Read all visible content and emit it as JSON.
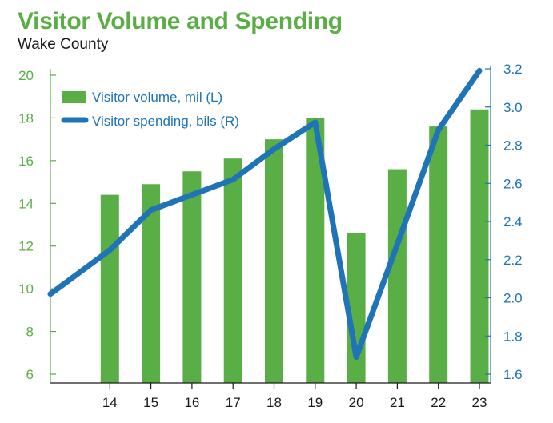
{
  "header": {
    "title": "Visitor Volume and Spending",
    "subtitle": "Wake County"
  },
  "colors": {
    "bars": "#5aae46",
    "line": "#1f73b7",
    "left_axis": "#5aae46",
    "right_axis": "#1f73b7",
    "x_axis": "#1a1a1a"
  },
  "chart_data": {
    "type": "bar+line",
    "title": "Visitor Volume and Spending",
    "subtitle": "Wake County",
    "categories": [
      "14",
      "15",
      "16",
      "17",
      "18",
      "19",
      "20",
      "21",
      "22",
      "23"
    ],
    "series": [
      {
        "name": "Visitor volume, mil (L)",
        "type": "bar",
        "axis": "left",
        "values": [
          14.4,
          14.9,
          15.5,
          16.1,
          17.0,
          18.0,
          12.6,
          15.6,
          17.6,
          18.4
        ]
      },
      {
        "name": "Visitor spending, bils (R)",
        "type": "line",
        "axis": "right",
        "start_value": 2.02,
        "values": [
          2.25,
          2.46,
          2.54,
          2.62,
          2.78,
          2.92,
          1.69,
          2.28,
          2.88,
          3.19
        ]
      }
    ],
    "left_axis": {
      "ylim": [
        5.5,
        21
      ],
      "ticks": [
        6,
        8,
        10,
        12,
        14,
        16,
        18,
        20
      ],
      "tick_labels": [
        "6",
        "8",
        "10",
        "12",
        "14",
        "16",
        "18",
        "20"
      ]
    },
    "right_axis": {
      "ylim": [
        1.57,
        3.27
      ],
      "ticks": [
        1.6,
        1.8,
        2.0,
        2.2,
        2.4,
        2.6,
        2.8,
        3.0,
        3.2
      ],
      "tick_labels": [
        "1.6",
        "1.8",
        "2.0",
        "2.2",
        "2.4",
        "2.6",
        "2.8",
        "3.0",
        "3.2"
      ]
    },
    "legend": {
      "position": "top-left",
      "entries": [
        "Visitor volume, mil (L)",
        "Visitor spending, bils (R)"
      ]
    },
    "grid": false
  }
}
